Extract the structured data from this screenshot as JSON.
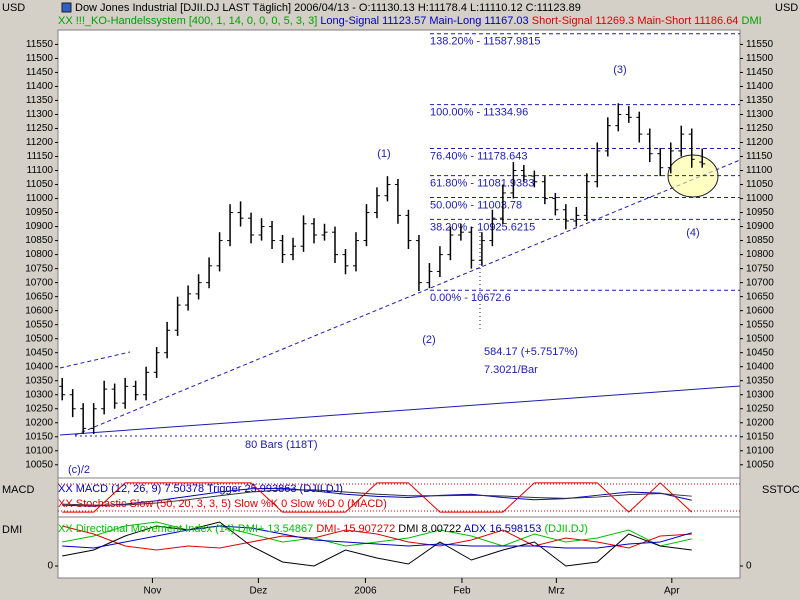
{
  "header": {
    "currency_left": "USD",
    "currency_right": "USD",
    "title": "Dow Jones Industrial [DJII.DJ LAST Täglich] 2006/04/13 - O:11130.13 H:11178.4 L:11110.12 C:11123.89",
    "system": "XX !!!_KO-Handelssystem [400, 1, 14, 0, 0, 0, 5, 3, 3]",
    "long": "Long-Signal 11123.57 Main-Long 11167.03",
    "short": "Short-Signal 11269.3 Main-Short 11186.64",
    "dmi": "DMI"
  },
  "chart_data": [
    {
      "type": "candlestick",
      "x": [
        0,
        1,
        2,
        3,
        4,
        5,
        6,
        7,
        8,
        9,
        10,
        11,
        12,
        13,
        14,
        15,
        16,
        17,
        18,
        19,
        20,
        21,
        22,
        23,
        24,
        25,
        26,
        27,
        28,
        29,
        30,
        31,
        32,
        33,
        34,
        35,
        36,
        37,
        38,
        39,
        40,
        41,
        42,
        43,
        44,
        45,
        46,
        47,
        48,
        49,
        50,
        51,
        52,
        53,
        54,
        55,
        56,
        57,
        58,
        59,
        60,
        61
      ],
      "open": [
        10330,
        10300,
        10250,
        10180,
        10250,
        10320,
        10270,
        10330,
        10300,
        10380,
        10450,
        10530,
        10620,
        10660,
        10700,
        10760,
        10850,
        10950,
        10930,
        10870,
        10900,
        10850,
        10800,
        10830,
        10910,
        10870,
        10880,
        10800,
        10760,
        10850,
        10950,
        11010,
        11050,
        10940,
        10850,
        10700,
        10740,
        10800,
        10870,
        10880,
        10780,
        10850,
        10930,
        11020,
        11100,
        11080,
        11060,
        11000,
        10960,
        10920,
        10940,
        11060,
        11170,
        11260,
        11300,
        11290,
        11230,
        11160,
        11110,
        11170,
        11230,
        11130.13
      ],
      "high": [
        10360,
        10320,
        10270,
        10270,
        10350,
        10340,
        10360,
        10350,
        10400,
        10470,
        10560,
        10650,
        10690,
        10730,
        10790,
        10880,
        10980,
        10990,
        10950,
        10930,
        10920,
        10870,
        10860,
        10940,
        10930,
        10910,
        10900,
        10820,
        10880,
        10980,
        11040,
        11080,
        11070,
        10960,
        10870,
        10770,
        10830,
        10900,
        10910,
        10900,
        10880,
        10960,
        11050,
        11130,
        11120,
        11100,
        11080,
        11020,
        10980,
        10970,
        11090,
        11200,
        11290,
        11340,
        11330,
        11310,
        11250,
        11180,
        11200,
        11260,
        11250,
        11178.4
      ],
      "low": [
        10280,
        10220,
        10160,
        10160,
        10230,
        10250,
        10250,
        10280,
        10280,
        10360,
        10430,
        10510,
        10600,
        10640,
        10680,
        10740,
        10830,
        10900,
        10840,
        10850,
        10820,
        10770,
        10780,
        10810,
        10840,
        10850,
        10770,
        10730,
        10740,
        10830,
        10930,
        10990,
        10910,
        10820,
        10670,
        10680,
        10720,
        10780,
        10850,
        10750,
        10760,
        10830,
        10910,
        11000,
        11060,
        11040,
        10980,
        10940,
        10890,
        10900,
        10920,
        11040,
        11150,
        11240,
        11270,
        11200,
        11130,
        11080,
        11090,
        11150,
        11110,
        11110.12
      ],
      "close": [
        10300,
        10250,
        10180,
        10250,
        10320,
        10270,
        10330,
        10300,
        10380,
        10450,
        10530,
        10620,
        10660,
        10700,
        10760,
        10850,
        10950,
        10930,
        10870,
        10900,
        10850,
        10800,
        10830,
        10910,
        10870,
        10880,
        10800,
        10760,
        10850,
        10950,
        11010,
        11050,
        10940,
        10850,
        10700,
        10740,
        10800,
        10870,
        10880,
        10780,
        10850,
        10930,
        11020,
        11100,
        11080,
        11060,
        11000,
        10960,
        10920,
        10940,
        11060,
        11170,
        11260,
        11300,
        11290,
        11230,
        11160,
        11110,
        11170,
        11230,
        11140,
        11123.89
      ],
      "xlim": [
        -0.4,
        64.6
      ],
      "xticks": [
        {
          "value": 8.6,
          "label": "Nov"
        },
        {
          "value": 18.7,
          "label": "Dez"
        },
        {
          "value": 28.9,
          "label": "2006"
        },
        {
          "value": 38.1,
          "label": "Feb"
        },
        {
          "value": 47.1,
          "label": "Mrz"
        },
        {
          "value": 58.1,
          "label": "Apr"
        }
      ],
      "ylim": [
        10030,
        11600
      ],
      "yticks": [
        10050,
        10100,
        10150,
        10200,
        10250,
        10300,
        10350,
        10400,
        10450,
        10500,
        10550,
        10600,
        10650,
        10700,
        10750,
        10800,
        10850,
        10900,
        10950,
        11000,
        11050,
        11100,
        11150,
        11200,
        11250,
        11300,
        11350,
        11400,
        11450,
        11500,
        11550
      ],
      "fib": [
        {
          "label": "138.20% - 11587.9815",
          "value": 11587.9815
        },
        {
          "label": "100.00% - 11334.96",
          "value": 11334.96
        },
        {
          "label": "76.40% - 11178.643",
          "value": 11178.643
        },
        {
          "label": "61.80% - 11081.9383",
          "value": 11081.9383
        },
        {
          "label": "50.00% - 11003.78",
          "value": 11003.78
        },
        {
          "label": "38.20% - 10925.6215",
          "value": 10925.6215
        },
        {
          "label": "0.00% - 10672.6",
          "value": 10672.6
        }
      ],
      "annotations": [
        "(1)",
        "(2)",
        "(3)",
        "(4)",
        "584.17 (+5.7517%)",
        "7.3021/Bar",
        "80 Bars (118T)",
        "(c)/2"
      ]
    },
    {
      "type": "line",
      "label": "MACD",
      "label_right": "SSTOC",
      "legend": [
        {
          "text": "XX MACD (12, 26, 9) 7.50378 Trigger 25.993863 (DJII.DJ)",
          "color": "#0000c0"
        },
        {
          "text": "XX Stochastic Slow (50, 20, 3, 3, 5) Slow %K 0 Slow %D 0 (MACD)",
          "color": "#e00000"
        }
      ],
      "x": [
        0,
        3,
        6,
        9,
        12,
        15,
        18,
        21,
        24,
        27,
        30,
        33,
        36,
        39,
        42,
        45,
        48,
        51,
        54,
        57,
        60
      ],
      "ylim": [
        -60,
        100
      ],
      "y2lim": [
        -10,
        110
      ],
      "series": [
        {
          "color": "#0000c0",
          "values": [
            -15,
            -20,
            -10,
            5,
            25,
            45,
            60,
            62,
            50,
            35,
            25,
            20,
            30,
            35,
            20,
            10,
            15,
            30,
            45,
            40,
            7.50378
          ]
        },
        {
          "color": "#303030",
          "values": [
            -10,
            -15,
            -14,
            -5,
            10,
            28,
            45,
            55,
            55,
            45,
            35,
            28,
            28,
            30,
            27,
            20,
            16,
            22,
            33,
            38,
            25.993863
          ]
        },
        {
          "color": "#e00000",
          "axis": "y2",
          "values": [
            0,
            0,
            100,
            100,
            100,
            100,
            100,
            0,
            0,
            0,
            100,
            100,
            0,
            0,
            0,
            100,
            100,
            100,
            0,
            100,
            0
          ]
        }
      ]
    },
    {
      "type": "line",
      "label": "DMI",
      "legend": [
        {
          "text": "XX Directional Movement Index (14) DMI+ 13.54867",
          "color": "#00c000"
        },
        {
          "text": "DMI- 15.907272",
          "color": "#e00000"
        },
        {
          "text": "DMI 8.00722",
          "color": "#000000"
        },
        {
          "text": "ADX 16.598153",
          "color": "#0000c0"
        },
        {
          "text": "(DJII.DJ)",
          "color": "#00c000"
        }
      ],
      "x": [
        0,
        3,
        6,
        9,
        12,
        15,
        18,
        21,
        24,
        27,
        30,
        33,
        36,
        39,
        42,
        45,
        48,
        51,
        54,
        57,
        60
      ],
      "ylim": [
        -6,
        23
      ],
      "yticks": [
        0
      ],
      "series": [
        {
          "color": "#00c000",
          "values": [
            12,
            15,
            20,
            22,
            18,
            20,
            16,
            12,
            14,
            10,
            12,
            14,
            18,
            15,
            10,
            16,
            12,
            14,
            18,
            10,
            13.54867
          ]
        },
        {
          "color": "#e00000",
          "values": [
            20,
            16,
            10,
            8,
            10,
            9,
            12,
            15,
            14,
            18,
            16,
            12,
            10,
            13,
            18,
            10,
            14,
            12,
            9,
            15,
            15.907272
          ]
        },
        {
          "color": "#000000",
          "values": [
            5,
            8,
            15,
            20,
            18,
            22,
            10,
            2,
            0,
            8,
            4,
            1,
            12,
            3,
            8,
            12,
            0,
            2,
            16,
            10,
            8.00722
          ]
        },
        {
          "color": "#0000c0",
          "values": [
            10,
            9,
            12,
            15,
            18,
            20,
            19,
            16,
            13,
            12,
            11,
            10,
            11,
            10,
            10,
            10,
            9,
            9,
            11,
            12,
            16.598153
          ]
        }
      ]
    }
  ]
}
